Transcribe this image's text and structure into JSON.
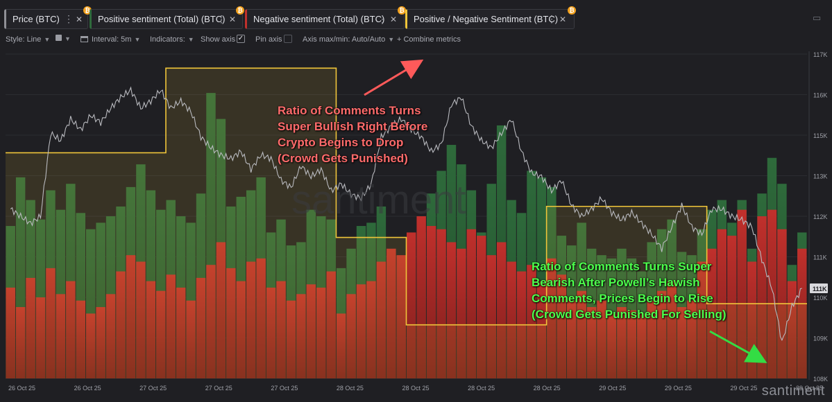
{
  "tabs": [
    {
      "label": "Price (BTC)",
      "color": "#8f9096"
    },
    {
      "label": "Positive sentiment (Total) (BTC)",
      "color": "#2f6b3c"
    },
    {
      "label": "Negative sentiment (Total) (BTC)",
      "color": "#c0302c"
    },
    {
      "label": "Positive / Negative Sentiment (BTC)",
      "color": "#f0c53a"
    }
  ],
  "toolbar": {
    "style": "Style: Line",
    "interval": "Interval: 5m",
    "indicators": "Indicators:",
    "show_axis": "Show axis",
    "pin_axis": "Pin axis",
    "axis_maxmin": "Axis max/min: Auto/Auto",
    "combine": "+ Combine metrics"
  },
  "icons": [
    "more-dots-icon",
    "close-icon",
    "bitcoin-icon",
    "chevron-down-icon",
    "square-icon",
    "calendar-icon",
    "checkbox-icon"
  ],
  "watermark": "santiment",
  "annotations": {
    "bullish": [
      "Ratio of Comments Turns",
      "Super Bullish Right Before",
      "Crypto Begins to Drop",
      "(Crowd Gets Punished)"
    ],
    "bearish": [
      "Ratio of Comments Turns Super",
      "Bearish After Powell’s Hawish",
      "Comments, Prices Begin to Rise",
      "(Crowd Gets Punished For Selling)"
    ]
  },
  "chart_data": {
    "type": "line",
    "y_ticks": [
      "117K",
      "116K",
      "115K",
      "113K",
      "112K",
      "111K",
      "110K",
      "109K",
      "108K"
    ],
    "ylim": [
      108000,
      117000
    ],
    "current_price_label": "111K",
    "x_ticks": [
      "26 Oct 25",
      "26 Oct 25",
      "27 Oct 25",
      "27 Oct 25",
      "27 Oct 25",
      "28 Oct 25",
      "28 Oct 25",
      "28 Oct 25",
      "28 Oct 25",
      "29 Oct 25",
      "29 Oct 25",
      "29 Oct 25",
      "29 Oct 25"
    ],
    "colors": {
      "price": "#b9babf",
      "positive": "#2e6a3b",
      "negative": "#c0302c",
      "ratio": "#f0c53a"
    },
    "series": [
      {
        "name": "Price (BTC)",
        "values": [
          112700,
          112500,
          112300,
          112500,
          114800,
          114600,
          115200,
          114900,
          115300,
          115100,
          115500,
          115800,
          116000,
          115500,
          115700,
          116000,
          115500,
          115700,
          115400,
          114700,
          114400,
          114200,
          114100,
          114300,
          113800,
          114200,
          114100,
          113500,
          113300,
          113900,
          113600,
          113800,
          113200,
          113400,
          113100,
          113000,
          113400,
          114700,
          115000,
          115200,
          114900,
          114700,
          114300,
          114500,
          115600,
          115800,
          115000,
          114600,
          114400,
          114800,
          115200,
          114300,
          113700,
          113600,
          113200,
          113500,
          112800,
          112500,
          112700,
          113000,
          112600,
          112400,
          112600,
          112300,
          112000,
          111600,
          112200,
          112800,
          112200,
          112000,
          112700,
          112700,
          112500,
          112400,
          112200,
          111300,
          110500,
          109000,
          110000,
          110500
        ]
      },
      {
        "name": "Positive sentiment (Total) (BTC)",
        "values": [
          47,
          62,
          55,
          49,
          58,
          52,
          60,
          51,
          46,
          48,
          50,
          53,
          59,
          66,
          58,
          52,
          55,
          50,
          48,
          57,
          88,
          80,
          53,
          56,
          58,
          62,
          45,
          49,
          41,
          42,
          52,
          50,
          49,
          34,
          40,
          47,
          48,
          53,
          38,
          35,
          44,
          45,
          57,
          64,
          72,
          66,
          58,
          45,
          60,
          78,
          55,
          51,
          64,
          62,
          59,
          44,
          41,
          48,
          40,
          38,
          37,
          40,
          37,
          33,
          42,
          46,
          49,
          39,
          38,
          46,
          52,
          55,
          48,
          55,
          40,
          57,
          68,
          60,
          35,
          45
        ]
      },
      {
        "name": "Negative sentiment (Total) (BTC)",
        "values": [
          28,
          22,
          31,
          25,
          34,
          26,
          30,
          24,
          20,
          22,
          26,
          33,
          38,
          36,
          30,
          27,
          32,
          28,
          24,
          31,
          35,
          42,
          34,
          30,
          36,
          37,
          28,
          30,
          24,
          26,
          29,
          28,
          33,
          20,
          26,
          29,
          30,
          36,
          40,
          38,
          45,
          50,
          47,
          46,
          42,
          40,
          46,
          44,
          38,
          42,
          36,
          33,
          35,
          30,
          37,
          32,
          24,
          27,
          22,
          24,
          20,
          22,
          21,
          20,
          24,
          27,
          30,
          22,
          24,
          36,
          40,
          46,
          44,
          52,
          36,
          50,
          52,
          46,
          30,
          40
        ]
      },
      {
        "name": "Positive / Negative Sentiment (BTC)",
        "values": [
          1.6,
          1.6,
          1.6,
          1.6,
          1.6,
          1.6,
          1.6,
          1.6,
          1.6,
          1.6,
          1.6,
          1.6,
          1.6,
          1.6,
          1.6,
          1.6,
          2.2,
          2.2,
          2.2,
          2.2,
          2.2,
          2.2,
          2.2,
          2.2,
          2.2,
          2.2,
          2.2,
          2.2,
          2.2,
          2.2,
          2.2,
          2.2,
          2.2,
          1.0,
          1.0,
          1.0,
          1.0,
          1.0,
          1.0,
          1.0,
          0.38,
          0.38,
          0.38,
          0.38,
          0.38,
          0.38,
          0.38,
          0.38,
          0.38,
          0.38,
          0.38,
          0.38,
          0.38,
          0.38,
          1.22,
          1.22,
          1.22,
          1.22,
          1.22,
          1.22,
          1.22,
          1.22,
          1.22,
          1.22,
          1.22,
          1.22,
          1.22,
          1.22,
          1.22,
          1.22,
          0.53,
          0.53,
          0.53,
          0.53,
          0.53,
          0.53,
          0.53,
          0.53,
          0.53,
          0.53
        ]
      }
    ]
  }
}
